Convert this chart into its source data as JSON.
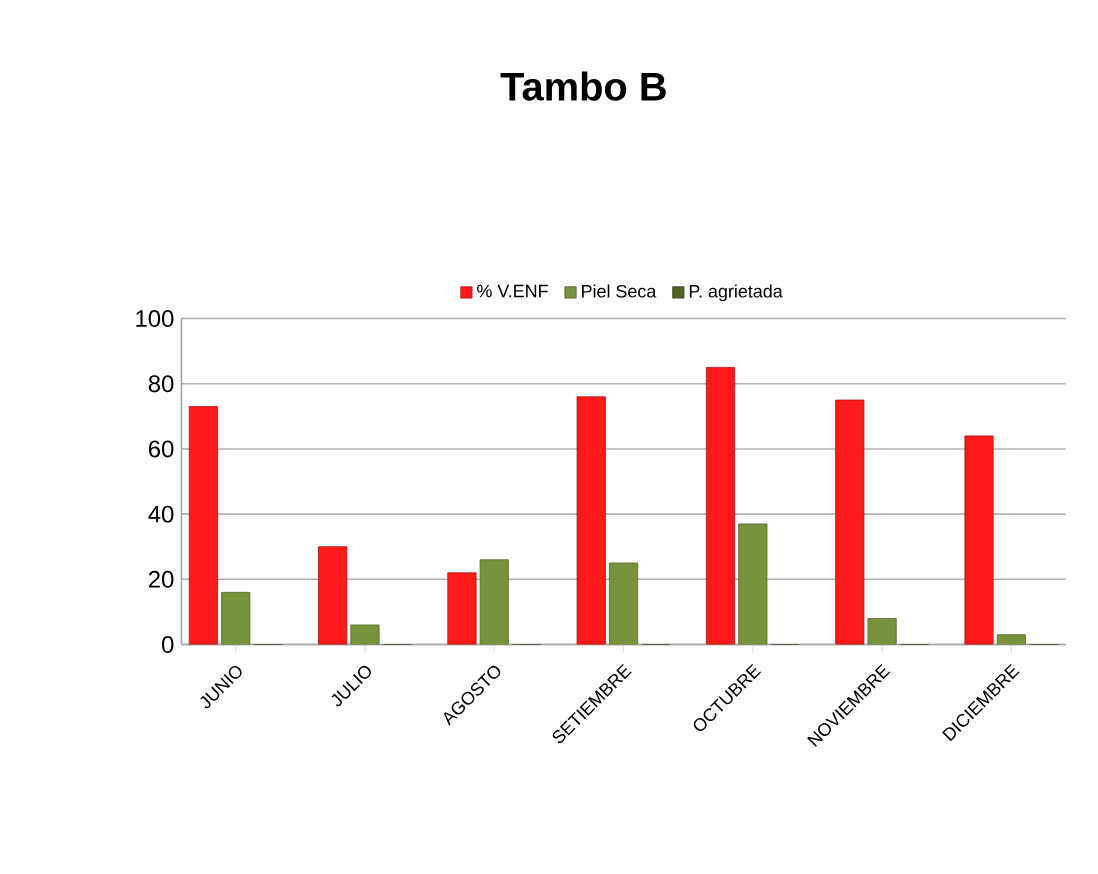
{
  "chart_data": {
    "type": "bar",
    "title": "Tambo B",
    "categories": [
      "JUNIO",
      "JULIO",
      "AGOSTO",
      "SETIEMBRE",
      "OCTUBRE",
      "NOVIEMBRE",
      "DICIEMBRE"
    ],
    "series": [
      {
        "name": "% V.ENF",
        "color": "#ff1a1a",
        "values": [
          73,
          30,
          22,
          76,
          85,
          75,
          64
        ]
      },
      {
        "name": "Piel Seca",
        "color": "#77933c",
        "values": [
          16,
          6,
          26,
          25,
          37,
          8,
          3
        ]
      },
      {
        "name": "P. agrietada",
        "color": "#4f6228",
        "values": [
          0,
          0,
          0,
          0,
          0,
          0,
          0
        ]
      }
    ],
    "ylim": [
      0,
      100
    ],
    "yticks": [
      0,
      20,
      40,
      60,
      80,
      100
    ],
    "grid": "y",
    "legend": "top"
  }
}
